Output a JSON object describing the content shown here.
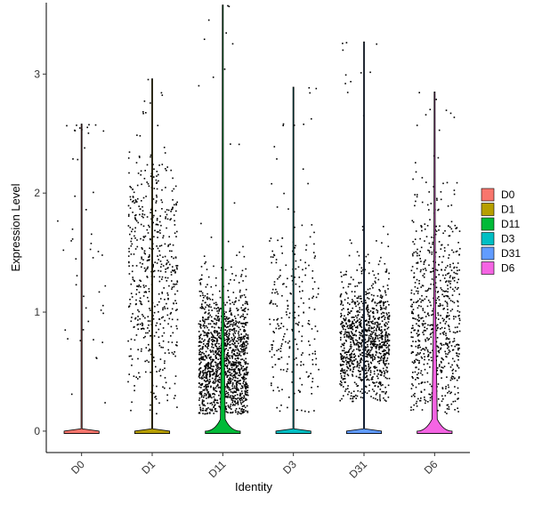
{
  "chart_data": {
    "type": "violin",
    "title": "",
    "xlabel": "Identity",
    "ylabel": "Expression Level",
    "ylim": [
      -0.18,
      3.6
    ],
    "yticks": [
      0,
      1,
      2,
      3
    ],
    "grid": false,
    "legend_position": "right",
    "point_size": 0.6,
    "categories": [
      "D0",
      "D1",
      "D11",
      "D3",
      "D31",
      "D6"
    ],
    "series": [
      {
        "name": "D0",
        "color": "#F8766D",
        "max": 2.58,
        "zero_fraction": 0.97,
        "n_points": 320,
        "nz_mean": 1.3,
        "nz_sd": 0.75,
        "nz_min": 0.15,
        "nz_max": 2.5,
        "violin_peak_width": 0.0
      },
      {
        "name": "D1",
        "color": "#B79F00",
        "max": 2.96,
        "zero_fraction": 0.9,
        "n_points": 1350,
        "nz_mean": 1.35,
        "nz_sd": 0.6,
        "nz_min": 0.15,
        "nz_max": 2.4,
        "violin_peak_width": 0.0
      },
      {
        "name": "D11",
        "color": "#00BA38",
        "max": 3.58,
        "zero_fraction": 0.8,
        "n_points": 1750,
        "nz_mean": 0.55,
        "nz_sd": 0.35,
        "nz_min": 0.15,
        "nz_max": 2.4,
        "violin_peak_width": 0.42
      },
      {
        "name": "D3",
        "color": "#00BFC4",
        "max": 2.89,
        "zero_fraction": 0.92,
        "n_points": 750,
        "nz_mean": 0.9,
        "nz_sd": 0.5,
        "nz_min": 0.15,
        "nz_max": 2.2,
        "violin_peak_width": 0.0
      },
      {
        "name": "D31",
        "color": "#619CFF",
        "max": 3.27,
        "zero_fraction": 0.85,
        "n_points": 1700,
        "nz_mean": 0.75,
        "nz_sd": 0.3,
        "nz_min": 0.25,
        "nz_max": 2.6,
        "violin_peak_width": 0.0
      },
      {
        "name": "D6",
        "color": "#F564E3",
        "max": 2.85,
        "zero_fraction": 0.75,
        "n_points": 700,
        "nz_mean": 0.85,
        "nz_sd": 0.55,
        "nz_min": 0.15,
        "nz_max": 2.3,
        "violin_peak_width": 0.46
      }
    ]
  }
}
